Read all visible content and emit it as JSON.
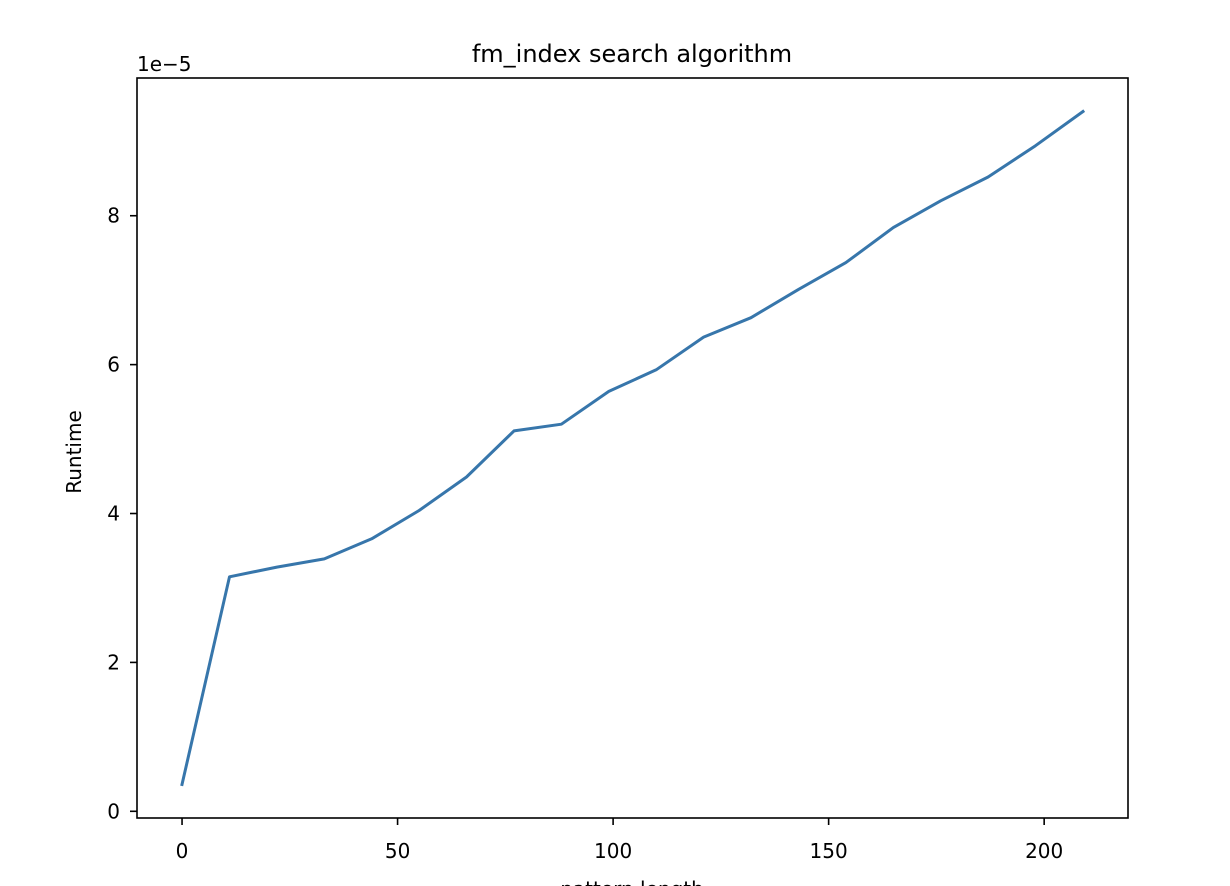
{
  "chart_data": {
    "type": "line",
    "title": "fm_index search algorithm",
    "xlabel": "pattern length",
    "ylabel": "Runtime",
    "y_offset_text": "1e−5",
    "y_scale": 1e-05,
    "xlim": [
      -10.45,
      219.45
    ],
    "ylim": [
      -0.09,
      9.85
    ],
    "xticks": [
      0,
      50,
      100,
      150,
      200
    ],
    "yticks": [
      0,
      2,
      4,
      6,
      8
    ],
    "grid": false,
    "legend": "none",
    "color": "#3776ab",
    "series": [
      {
        "x": [
          0,
          11,
          22,
          33,
          44,
          55,
          66,
          77,
          88,
          99,
          110,
          121,
          132,
          143,
          154,
          165,
          176,
          187,
          198,
          209
        ],
        "y": [
          0.36,
          3.15,
          3.28,
          3.39,
          3.66,
          4.04,
          4.49,
          5.11,
          5.2,
          5.64,
          5.93,
          6.37,
          6.63,
          7.01,
          7.37,
          7.84,
          8.2,
          8.52,
          8.94,
          9.4
        ]
      }
    ]
  }
}
